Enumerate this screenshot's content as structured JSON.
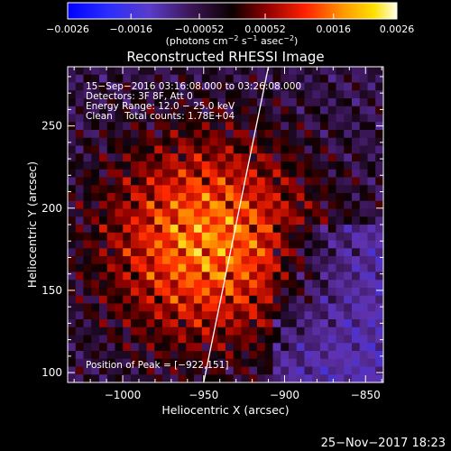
{
  "chart_data": {
    "type": "heatmap",
    "title": "Reconstructed RHESSI Image",
    "xlabel": "Heliocentric X (arcsec)",
    "ylabel": "Heliocentric Y (arcsec)",
    "xlim": [
      -1034,
      -839
    ],
    "ylim": [
      94,
      286
    ],
    "xticks": [
      -1000,
      -950,
      -900,
      -850
    ],
    "yticks": [
      100,
      150,
      200,
      250
    ],
    "xtick_labels": [
      "−1000",
      "−950",
      "−900",
      "−850"
    ],
    "ytick_labels": [
      "100",
      "150",
      "200",
      "250"
    ],
    "colorbar": {
      "range": [
        -0.0026,
        0.0026
      ],
      "ticks": [
        -0.0026,
        -0.0016,
        -0.00052,
        0.00052,
        0.0016,
        0.0026
      ],
      "tick_labels": [
        "−0.0026",
        "−0.0016",
        "−0.00052",
        "0.00052",
        "0.0016",
        "0.0026"
      ],
      "units_prefix": "(photons cm",
      "units_exp1": "−2",
      "units_mid1": " s",
      "units_exp2": "−1",
      "units_mid2": " asec",
      "units_exp3": "−2",
      "units_suffix": ")"
    },
    "source": {
      "x": -948,
      "y": 180,
      "sigma": 42
    },
    "peak_position": {
      "x": -922,
      "y": 151
    },
    "limb_line": [
      [
        -950,
        94
      ],
      [
        -910,
        286
      ]
    ],
    "annotations": [
      "15−Sep−2016 03:16:08.000 to 03:26:08.000",
      "Detectors: 3F 8F, Att 0",
      "Energy Range: 12.0 − 25.0 keV",
      "Clean    Total counts: 1.78E+04"
    ],
    "peak_label": "Position of Peak = [−922,151]",
    "colors": {
      "background": "#000000",
      "limb": "#ffffff"
    }
  },
  "footer": {
    "timestamp": "25−Nov−2017 18:23"
  }
}
